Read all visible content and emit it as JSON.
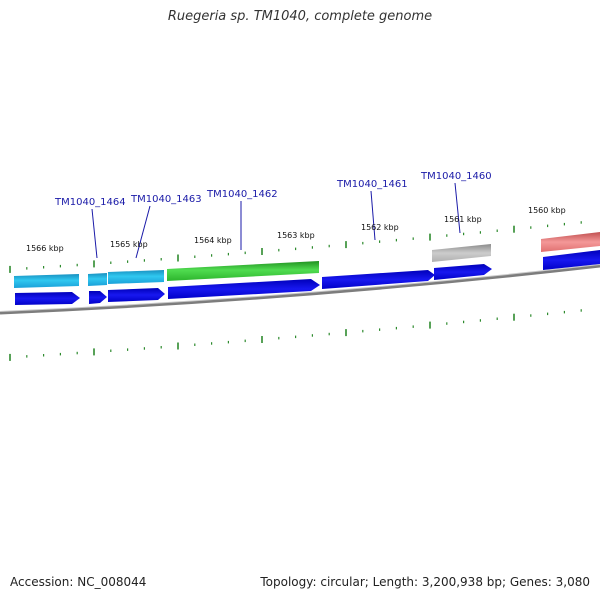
{
  "title": "Ruegeria sp. TM1040, complete genome",
  "footer": {
    "accession": "Accession: NC_008044",
    "summary": "Topology: circular; Length: 3,200,938 bp; Genes: 3,080"
  },
  "colors": {
    "cds_dark": "#1010e0",
    "cds_light": "#22b8e8",
    "cds_green": "#3cc83c",
    "gray_feature": "#b4b4b4",
    "pink_feature": "#ec8080",
    "backbone": "#8a8a8a",
    "tick_green": "#2e8b2e",
    "label_blue": "#1a1aa8"
  },
  "kbp_labels": [
    "1566 kbp",
    "1565 kbp",
    "1564 kbp",
    "1563 kbp",
    "1562 kbp",
    "1561 kbp",
    "1560 kbp"
  ],
  "gene_labels": [
    "TM1040_1464",
    "TM1040_1463",
    "TM1040_1462",
    "TM1040_1461",
    "TM1040_1460"
  ]
}
